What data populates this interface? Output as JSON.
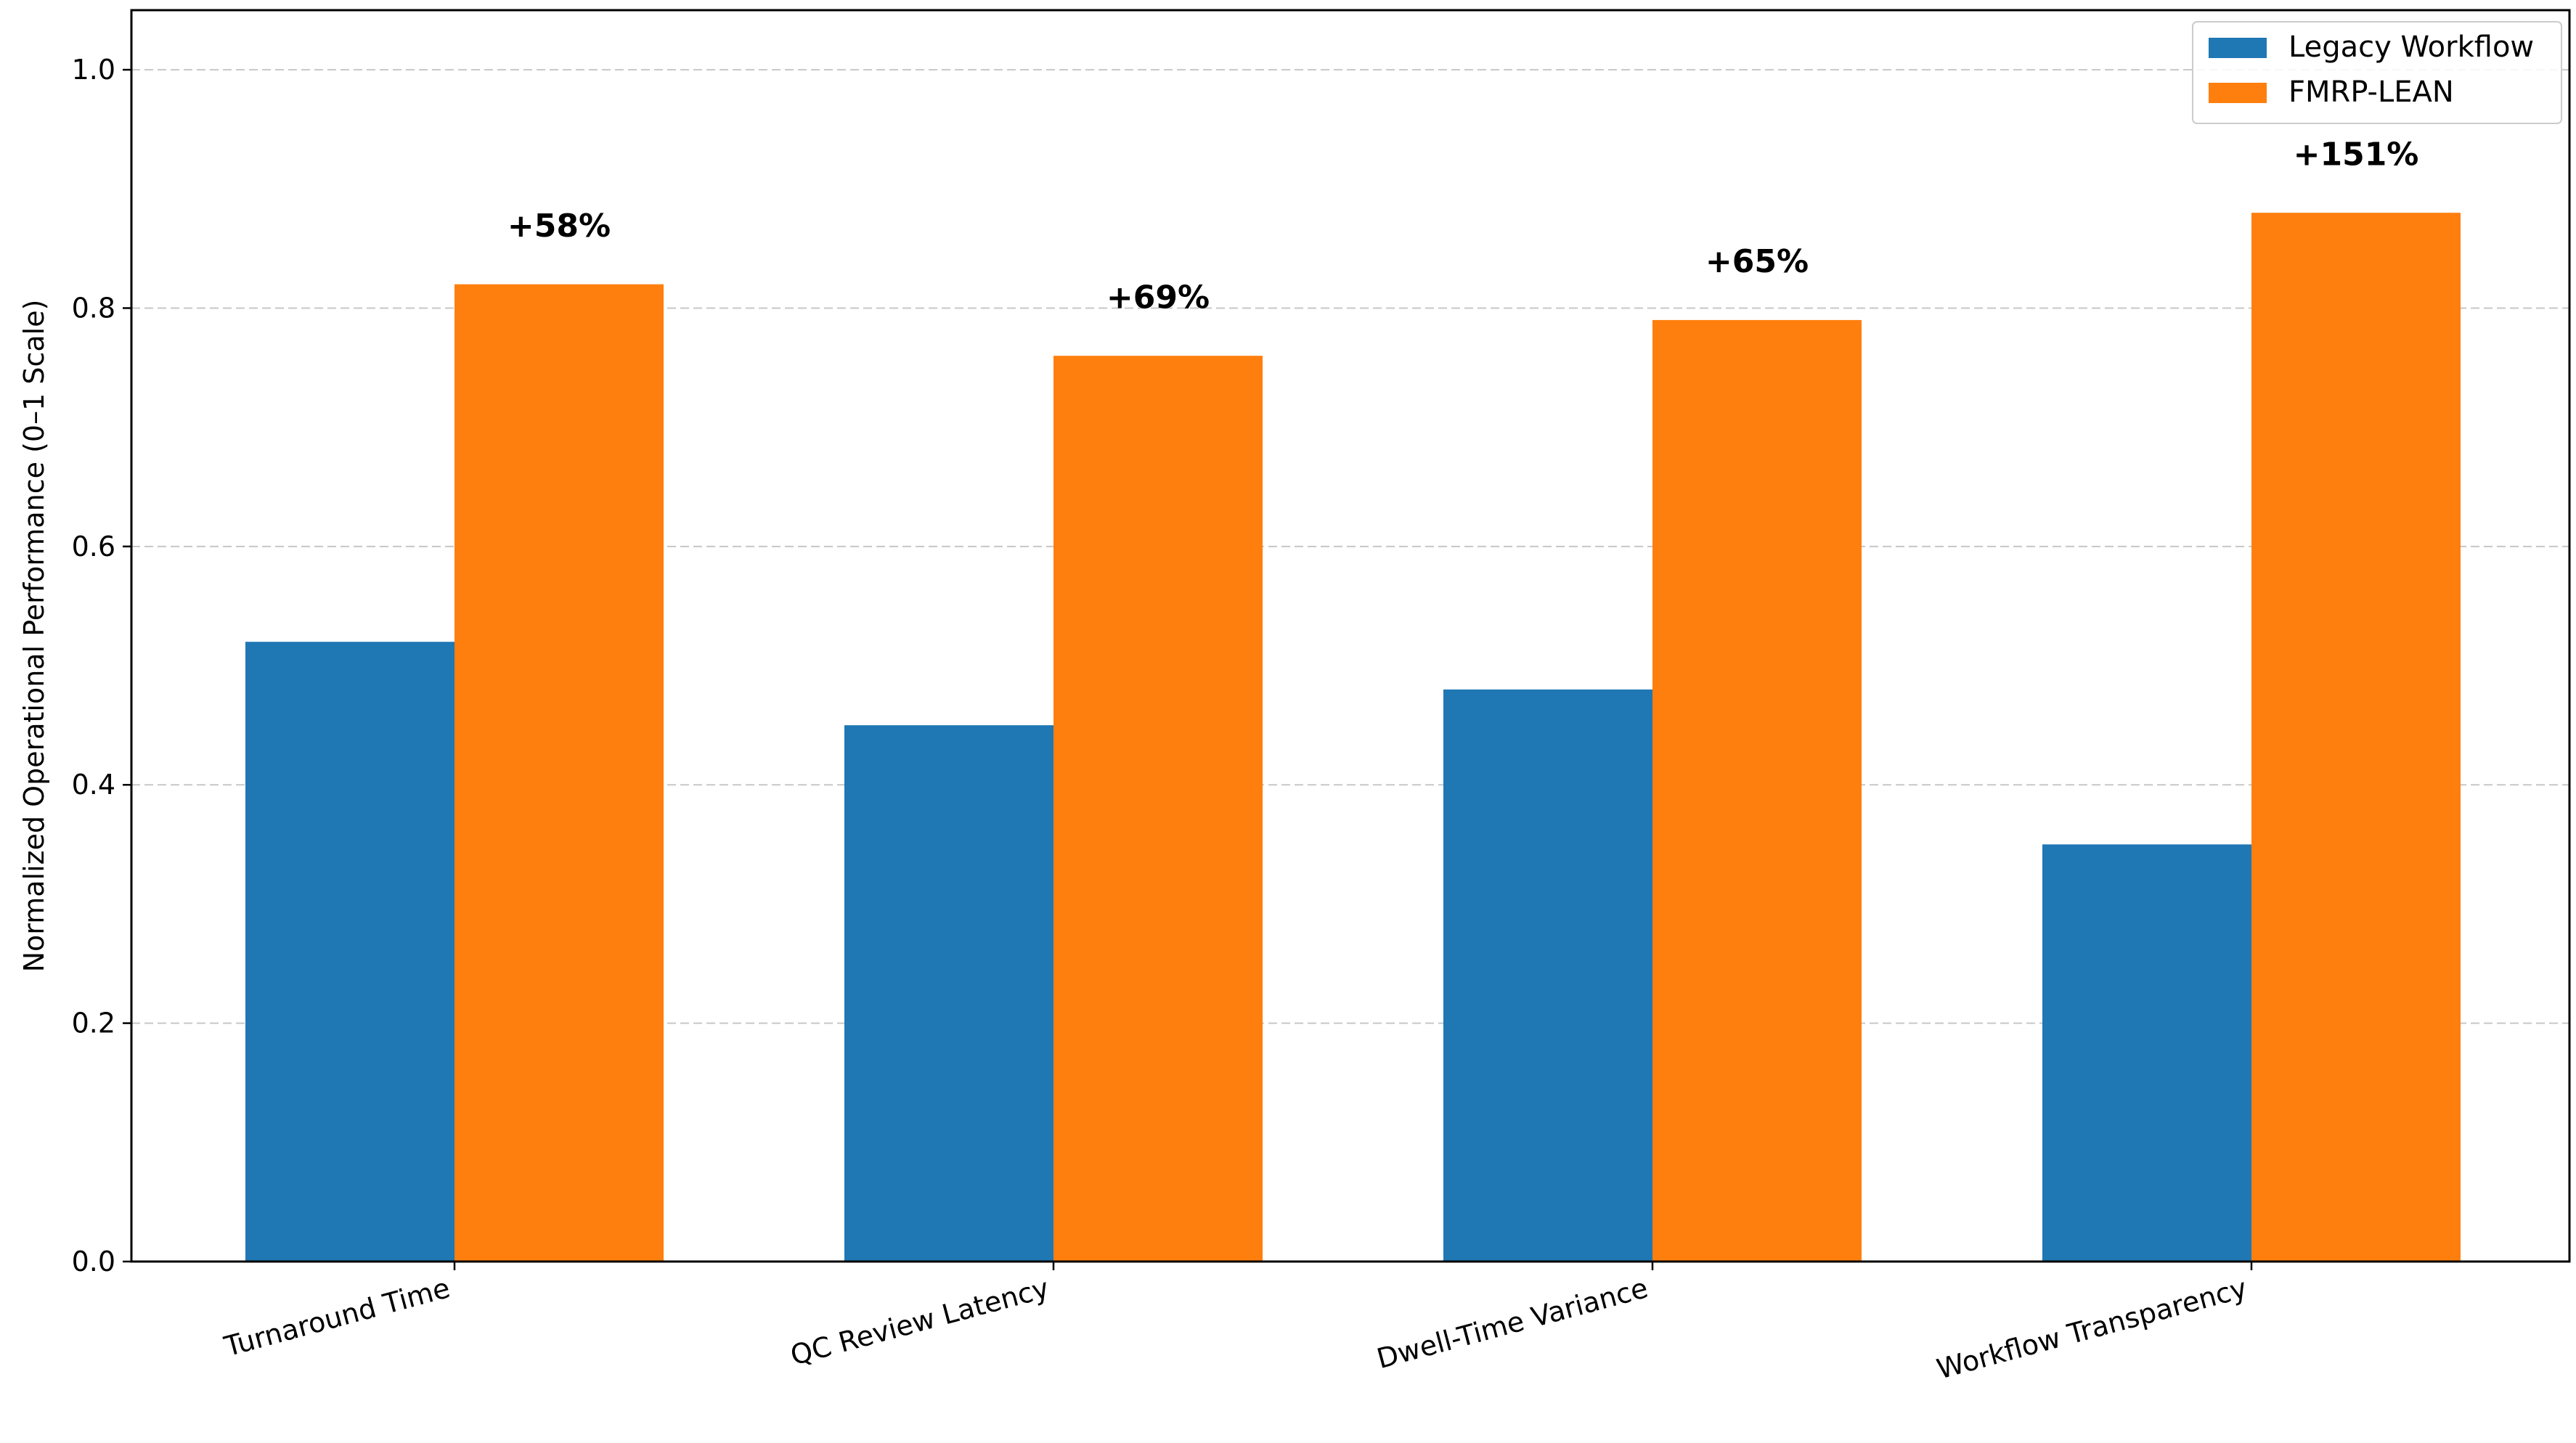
{
  "chart_data": {
    "type": "bar",
    "title": "",
    "xlabel": "",
    "ylabel": "Normalized Operational Performance (0–1 Scale)",
    "categories": [
      "Turnaround Time",
      "QC Review Latency",
      "Dwell-Time Variance",
      "Workflow Transparency"
    ],
    "series": [
      {
        "name": "Legacy Workflow",
        "values": [
          0.52,
          0.45,
          0.48,
          0.35
        ],
        "color": "#1f77b4"
      },
      {
        "name": "FMRP-LEAN",
        "values": [
          0.82,
          0.76,
          0.79,
          0.88
        ],
        "color": "#ff7f0e"
      }
    ],
    "annotations": [
      "+58%",
      "+69%",
      "+65%",
      "+151%"
    ],
    "ylim": [
      0,
      1.05
    ],
    "yticks": [
      "0.0",
      "0.2",
      "0.4",
      "0.6",
      "0.8",
      "1.0"
    ],
    "grid": "y-dashed",
    "legend_position": "top-right"
  }
}
